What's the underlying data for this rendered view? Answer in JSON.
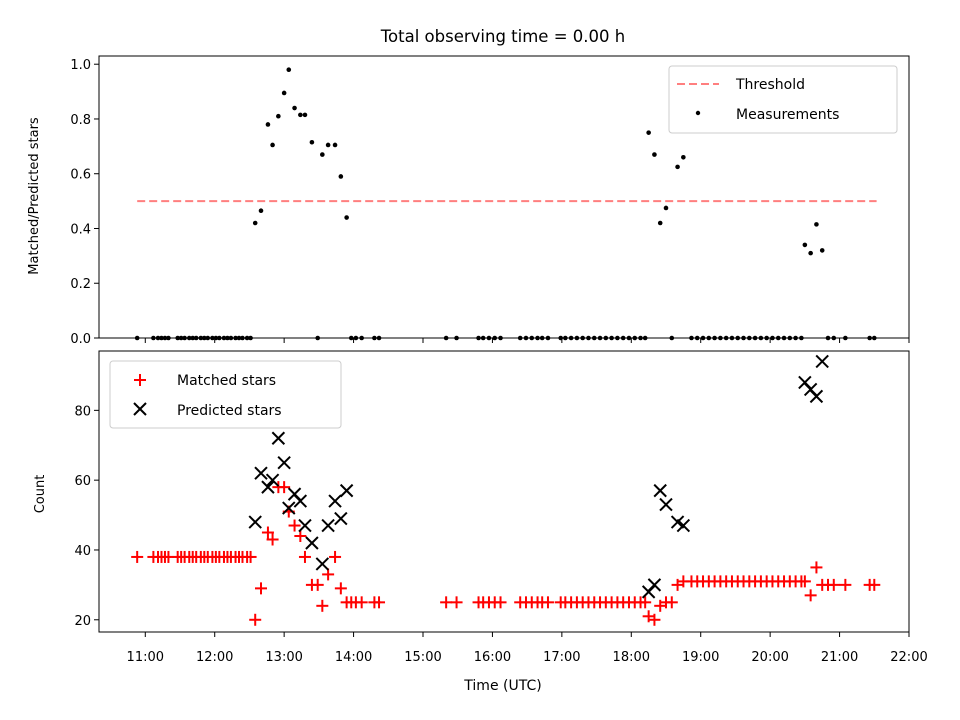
{
  "title": "Total observing time = 0.00 h",
  "colors": {
    "threshold": "#ff7f7f",
    "measurements": "#000000",
    "matched": "#ff0000",
    "predicted": "#000000"
  },
  "chart_data": [
    {
      "type": "scatter",
      "ylabel": "Matched/Predicted stars",
      "ylim": [
        0,
        1.03
      ],
      "yticks": [
        "0.0",
        "0.2",
        "0.4",
        "0.6",
        "0.8",
        "1.0"
      ],
      "xlim": [
        "10:20",
        "22:00"
      ],
      "legend_position": "top-right",
      "threshold": {
        "name": "Threshold",
        "value": 0.5,
        "x_range": [
          "10:53",
          "21:32"
        ]
      },
      "series": [
        {
          "name": "Measurements",
          "points": [
            [
              "10:53",
              0
            ],
            [
              "11:07",
              0
            ],
            [
              "11:11",
              0
            ],
            [
              "11:14",
              0
            ],
            [
              "11:17",
              0
            ],
            [
              "11:20",
              0
            ],
            [
              "11:28",
              0
            ],
            [
              "11:31",
              0
            ],
            [
              "11:34",
              0
            ],
            [
              "11:38",
              0
            ],
            [
              "11:41",
              0
            ],
            [
              "11:44",
              0
            ],
            [
              "11:48",
              0
            ],
            [
              "11:51",
              0
            ],
            [
              "11:54",
              0
            ],
            [
              "11:58",
              0
            ],
            [
              "12:01",
              0
            ],
            [
              "12:04",
              0
            ],
            [
              "12:08",
              0
            ],
            [
              "12:11",
              0
            ],
            [
              "12:14",
              0
            ],
            [
              "12:18",
              0
            ],
            [
              "12:21",
              0
            ],
            [
              "12:24",
              0
            ],
            [
              "12:28",
              0
            ],
            [
              "12:31",
              0
            ],
            [
              "12:35",
              0.42
            ],
            [
              "12:40",
              0.465
            ],
            [
              "12:46",
              0.78
            ],
            [
              "12:50",
              0.705
            ],
            [
              "12:55",
              0.81
            ],
            [
              "13:00",
              0.895
            ],
            [
              "13:04",
              0.98
            ],
            [
              "13:09",
              0.84
            ],
            [
              "13:14",
              0.815
            ],
            [
              "13:18",
              0.815
            ],
            [
              "13:24",
              0.715
            ],
            [
              "13:29",
              0
            ],
            [
              "13:33",
              0.67
            ],
            [
              "13:38",
              0.705
            ],
            [
              "13:44",
              0.705
            ],
            [
              "13:49",
              0.59
            ],
            [
              "13:54",
              0.44
            ],
            [
              "13:58",
              0
            ],
            [
              "14:02",
              0
            ],
            [
              "14:07",
              0
            ],
            [
              "14:18",
              0
            ],
            [
              "14:22",
              0
            ],
            [
              "15:20",
              0
            ],
            [
              "15:29",
              0
            ],
            [
              "15:48",
              0
            ],
            [
              "15:52",
              0
            ],
            [
              "15:57",
              0
            ],
            [
              "16:02",
              0
            ],
            [
              "16:07",
              0
            ],
            [
              "16:24",
              0
            ],
            [
              "16:29",
              0
            ],
            [
              "16:34",
              0
            ],
            [
              "16:39",
              0
            ],
            [
              "16:43",
              0
            ],
            [
              "16:48",
              0
            ],
            [
              "16:59",
              0
            ],
            [
              "17:03",
              0
            ],
            [
              "17:08",
              0
            ],
            [
              "17:13",
              0
            ],
            [
              "17:18",
              0
            ],
            [
              "17:23",
              0
            ],
            [
              "17:28",
              0
            ],
            [
              "17:33",
              0
            ],
            [
              "17:38",
              0
            ],
            [
              "17:43",
              0
            ],
            [
              "17:48",
              0
            ],
            [
              "17:53",
              0
            ],
            [
              "17:58",
              0
            ],
            [
              "18:03",
              0
            ],
            [
              "18:08",
              0
            ],
            [
              "18:12",
              0
            ],
            [
              "18:15",
              0.75
            ],
            [
              "18:20",
              0.67
            ],
            [
              "18:25",
              0.42
            ],
            [
              "18:30",
              0.475
            ],
            [
              "18:35",
              0
            ],
            [
              "18:40",
              0.625
            ],
            [
              "18:45",
              0.66
            ],
            [
              "18:52",
              0
            ],
            [
              "18:57",
              0
            ],
            [
              "19:02",
              0
            ],
            [
              "19:07",
              0
            ],
            [
              "19:12",
              0
            ],
            [
              "19:17",
              0
            ],
            [
              "19:22",
              0
            ],
            [
              "19:27",
              0
            ],
            [
              "19:32",
              0
            ],
            [
              "19:37",
              0
            ],
            [
              "19:42",
              0
            ],
            [
              "19:47",
              0
            ],
            [
              "19:52",
              0
            ],
            [
              "19:57",
              0
            ],
            [
              "20:02",
              0
            ],
            [
              "20:07",
              0
            ],
            [
              "20:12",
              0
            ],
            [
              "20:17",
              0
            ],
            [
              "20:22",
              0
            ],
            [
              "20:27",
              0
            ],
            [
              "20:30",
              0.34
            ],
            [
              "20:35",
              0.31
            ],
            [
              "20:40",
              0.415
            ],
            [
              "20:45",
              0.32
            ],
            [
              "20:50",
              0
            ],
            [
              "20:55",
              0
            ],
            [
              "21:05",
              0
            ],
            [
              "21:26",
              0
            ],
            [
              "21:30",
              0
            ]
          ]
        }
      ]
    },
    {
      "type": "scatter",
      "ylabel": "Count",
      "xlabel": "Time (UTC)",
      "ylim": [
        16.5,
        97
      ],
      "yticks": [
        "20",
        "40",
        "60",
        "80"
      ],
      "xlim": [
        "10:20",
        "22:00"
      ],
      "xticks": [
        "11:00",
        "12:00",
        "13:00",
        "14:00",
        "15:00",
        "16:00",
        "17:00",
        "18:00",
        "19:00",
        "20:00",
        "21:00",
        "22:00"
      ],
      "legend_position": "top-left",
      "series": [
        {
          "name": "Matched stars",
          "points": [
            [
              "10:53",
              38
            ],
            [
              "11:07",
              38
            ],
            [
              "11:11",
              38
            ],
            [
              "11:14",
              38
            ],
            [
              "11:17",
              38
            ],
            [
              "11:20",
              38
            ],
            [
              "11:28",
              38
            ],
            [
              "11:31",
              38
            ],
            [
              "11:34",
              38
            ],
            [
              "11:38",
              38
            ],
            [
              "11:41",
              38
            ],
            [
              "11:44",
              38
            ],
            [
              "11:48",
              38
            ],
            [
              "11:51",
              38
            ],
            [
              "11:54",
              38
            ],
            [
              "11:58",
              38
            ],
            [
              "12:01",
              38
            ],
            [
              "12:04",
              38
            ],
            [
              "12:08",
              38
            ],
            [
              "12:11",
              38
            ],
            [
              "12:14",
              38
            ],
            [
              "12:18",
              38
            ],
            [
              "12:21",
              38
            ],
            [
              "12:24",
              38
            ],
            [
              "12:28",
              38
            ],
            [
              "12:31",
              38
            ],
            [
              "12:35",
              20
            ],
            [
              "12:40",
              29
            ],
            [
              "12:46",
              45
            ],
            [
              "12:50",
              43
            ],
            [
              "12:55",
              58
            ],
            [
              "13:00",
              58
            ],
            [
              "13:04",
              51
            ],
            [
              "13:09",
              47
            ],
            [
              "13:14",
              44
            ],
            [
              "13:18",
              38
            ],
            [
              "13:24",
              30
            ],
            [
              "13:29",
              30
            ],
            [
              "13:33",
              24
            ],
            [
              "13:38",
              33
            ],
            [
              "13:44",
              38
            ],
            [
              "13:49",
              29
            ],
            [
              "13:54",
              25
            ],
            [
              "13:58",
              25
            ],
            [
              "14:02",
              25
            ],
            [
              "14:07",
              25
            ],
            [
              "14:18",
              25
            ],
            [
              "14:22",
              25
            ],
            [
              "15:20",
              25
            ],
            [
              "15:29",
              25
            ],
            [
              "15:48",
              25
            ],
            [
              "15:52",
              25
            ],
            [
              "15:57",
              25
            ],
            [
              "16:02",
              25
            ],
            [
              "16:07",
              25
            ],
            [
              "16:24",
              25
            ],
            [
              "16:29",
              25
            ],
            [
              "16:34",
              25
            ],
            [
              "16:39",
              25
            ],
            [
              "16:43",
              25
            ],
            [
              "16:48",
              25
            ],
            [
              "16:59",
              25
            ],
            [
              "17:03",
              25
            ],
            [
              "17:08",
              25
            ],
            [
              "17:13",
              25
            ],
            [
              "17:18",
              25
            ],
            [
              "17:23",
              25
            ],
            [
              "17:28",
              25
            ],
            [
              "17:33",
              25
            ],
            [
              "17:38",
              25
            ],
            [
              "17:43",
              25
            ],
            [
              "17:48",
              25
            ],
            [
              "17:53",
              25
            ],
            [
              "17:58",
              25
            ],
            [
              "18:03",
              25
            ],
            [
              "18:08",
              25
            ],
            [
              "18:12",
              25
            ],
            [
              "18:15",
              21
            ],
            [
              "18:20",
              20
            ],
            [
              "18:25",
              24
            ],
            [
              "18:30",
              25
            ],
            [
              "18:35",
              25
            ],
            [
              "18:40",
              30
            ],
            [
              "18:45",
              31
            ],
            [
              "18:52",
              31
            ],
            [
              "18:57",
              31
            ],
            [
              "19:02",
              31
            ],
            [
              "19:07",
              31
            ],
            [
              "19:12",
              31
            ],
            [
              "19:17",
              31
            ],
            [
              "19:22",
              31
            ],
            [
              "19:27",
              31
            ],
            [
              "19:32",
              31
            ],
            [
              "19:37",
              31
            ],
            [
              "19:42",
              31
            ],
            [
              "19:47",
              31
            ],
            [
              "19:52",
              31
            ],
            [
              "19:57",
              31
            ],
            [
              "20:02",
              31
            ],
            [
              "20:07",
              31
            ],
            [
              "20:12",
              31
            ],
            [
              "20:17",
              31
            ],
            [
              "20:22",
              31
            ],
            [
              "20:27",
              31
            ],
            [
              "20:30",
              31
            ],
            [
              "20:35",
              27
            ],
            [
              "20:40",
              35
            ],
            [
              "20:45",
              30
            ],
            [
              "20:50",
              30
            ],
            [
              "20:55",
              30
            ],
            [
              "21:05",
              30
            ],
            [
              "21:26",
              30
            ],
            [
              "21:30",
              30
            ]
          ]
        },
        {
          "name": "Predicted stars",
          "points": [
            [
              "12:35",
              48
            ],
            [
              "12:40",
              62
            ],
            [
              "12:46",
              58
            ],
            [
              "12:50",
              60
            ],
            [
              "12:55",
              72
            ],
            [
              "13:00",
              65
            ],
            [
              "13:04",
              52
            ],
            [
              "13:09",
              56
            ],
            [
              "13:14",
              54
            ],
            [
              "13:18",
              47
            ],
            [
              "13:24",
              42
            ],
            [
              "13:33",
              36
            ],
            [
              "13:38",
              47
            ],
            [
              "13:44",
              54
            ],
            [
              "13:49",
              49
            ],
            [
              "13:54",
              57
            ],
            [
              "18:15",
              28
            ],
            [
              "18:20",
              30
            ],
            [
              "18:25",
              57
            ],
            [
              "18:30",
              53
            ],
            [
              "18:40",
              48
            ],
            [
              "18:45",
              47
            ],
            [
              "20:30",
              88
            ],
            [
              "20:35",
              86
            ],
            [
              "20:40",
              84
            ],
            [
              "20:45",
              94
            ]
          ]
        }
      ]
    }
  ]
}
